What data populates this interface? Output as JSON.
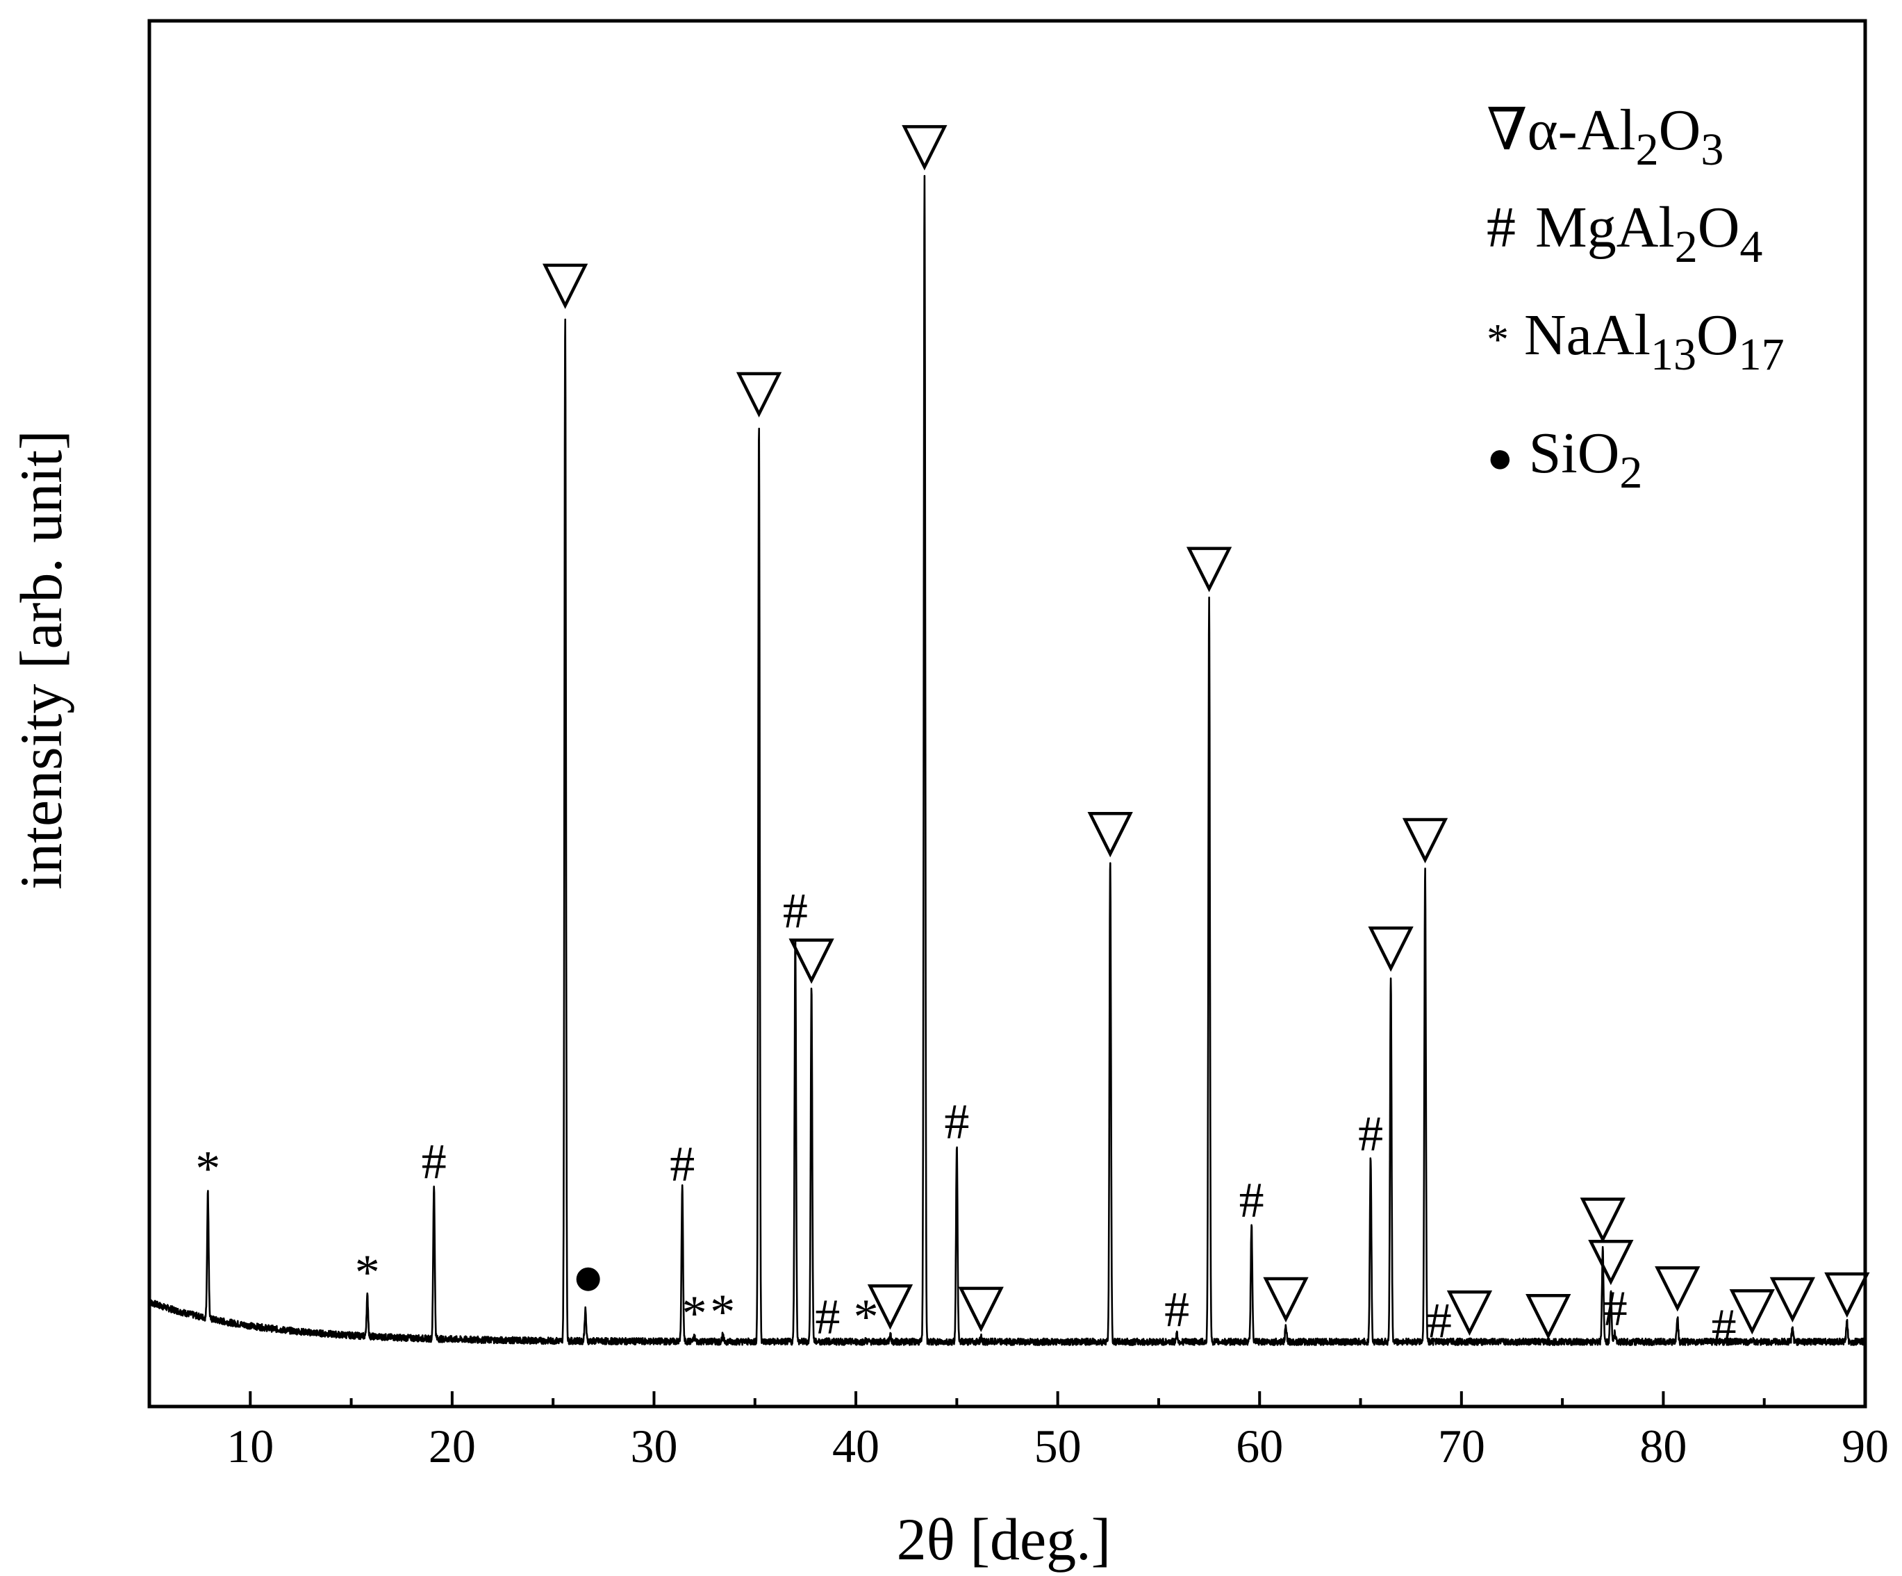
{
  "chart_data": {
    "type": "line",
    "title": "",
    "xlabel": "2θ [deg.]",
    "ylabel": "intensity [arb. unit]",
    "xlim": [
      5,
      90
    ],
    "ylim": [
      0,
      100
    ],
    "xticks": [
      10,
      20,
      30,
      40,
      50,
      60,
      70,
      80,
      90
    ],
    "grid": false,
    "legend_position": "top-right",
    "legend": [
      {
        "symbol": "∇",
        "formula": "α-Al2O3",
        "phase": "alpha-Al2O3"
      },
      {
        "symbol": "#",
        "formula": "MgAl2O4",
        "phase": "MgAl2O4"
      },
      {
        "symbol": "*",
        "formula": "NaAl13O17",
        "phase": "NaAl13O17"
      },
      {
        "symbol": "●",
        "formula": "SiO2",
        "phase": "SiO2"
      }
    ],
    "background": {
      "start": 5.5,
      "at5": 5.5,
      "at30": 2.4,
      "at90": 2.2
    },
    "peaks": [
      {
        "x": 7.9,
        "y": 14.6,
        "phase": "NaAl13O17",
        "marker": "*"
      },
      {
        "x": 15.8,
        "y": 6.0,
        "phase": "NaAl13O17",
        "marker": "*"
      },
      {
        "x": 19.1,
        "y": 15.2,
        "phase": "MgAl2O4",
        "marker": "#"
      },
      {
        "x": 25.6,
        "y": 87.5,
        "phase": "alpha-Al2O3",
        "marker": "∇"
      },
      {
        "x": 26.6,
        "y": 4.8,
        "phase": "SiO2",
        "marker": "●"
      },
      {
        "x": 31.4,
        "y": 15.0,
        "phase": "MgAl2O4",
        "marker": "#"
      },
      {
        "x": 32.0,
        "y": 2.6,
        "phase": "NaAl13O17",
        "marker": "*"
      },
      {
        "x": 33.4,
        "y": 2.7,
        "phase": "NaAl13O17",
        "marker": "*"
      },
      {
        "x": 35.2,
        "y": 78.5,
        "phase": "alpha-Al2O3",
        "marker": "∇"
      },
      {
        "x": 37.0,
        "y": 36.0,
        "phase": "MgAl2O4",
        "marker": "#"
      },
      {
        "x": 37.8,
        "y": 31.5,
        "phase": "alpha-Al2O3",
        "marker": "∇"
      },
      {
        "x": 38.6,
        "y": 2.3,
        "phase": "MgAl2O4",
        "marker": "#"
      },
      {
        "x": 40.5,
        "y": 2.3,
        "phase": "NaAl13O17",
        "marker": "*"
      },
      {
        "x": 41.7,
        "y": 2.8,
        "phase": "alpha-Al2O3",
        "marker": "∇"
      },
      {
        "x": 43.4,
        "y": 99.0,
        "phase": "alpha-Al2O3",
        "marker": "∇"
      },
      {
        "x": 45.0,
        "y": 18.5,
        "phase": "MgAl2O4",
        "marker": "#"
      },
      {
        "x": 46.2,
        "y": 2.6,
        "phase": "alpha-Al2O3",
        "marker": "∇"
      },
      {
        "x": 52.6,
        "y": 42.0,
        "phase": "alpha-Al2O3",
        "marker": "∇"
      },
      {
        "x": 55.9,
        "y": 2.9,
        "phase": "MgAl2O4",
        "marker": "#"
      },
      {
        "x": 57.5,
        "y": 64.0,
        "phase": "alpha-Al2O3",
        "marker": "∇"
      },
      {
        "x": 59.6,
        "y": 12.0,
        "phase": "MgAl2O4",
        "marker": "#"
      },
      {
        "x": 61.3,
        "y": 3.4,
        "phase": "alpha-Al2O3",
        "marker": "∇"
      },
      {
        "x": 65.5,
        "y": 17.5,
        "phase": "MgAl2O4",
        "marker": "#"
      },
      {
        "x": 66.5,
        "y": 32.5,
        "phase": "alpha-Al2O3",
        "marker": "∇"
      },
      {
        "x": 68.2,
        "y": 41.5,
        "phase": "alpha-Al2O3",
        "marker": "∇"
      },
      {
        "x": 68.9,
        "y": 2.0,
        "phase": "MgAl2O4",
        "marker": "#"
      },
      {
        "x": 70.4,
        "y": 2.3,
        "phase": "alpha-Al2O3",
        "marker": "∇"
      },
      {
        "x": 74.3,
        "y": 2.0,
        "phase": "alpha-Al2O3",
        "marker": "∇"
      },
      {
        "x": 77.0,
        "y": 10.0,
        "phase": "alpha-Al2O3",
        "marker": "∇"
      },
      {
        "x": 77.4,
        "y": 6.5,
        "phase": "alpha-Al2O3",
        "marker": "∇"
      },
      {
        "x": 77.6,
        "y": 3.0,
        "phase": "MgAl2O4",
        "marker": "#"
      },
      {
        "x": 80.7,
        "y": 4.3,
        "phase": "alpha-Al2O3",
        "marker": "∇"
      },
      {
        "x": 83.0,
        "y": 1.5,
        "phase": "MgAl2O4",
        "marker": "#"
      },
      {
        "x": 84.4,
        "y": 2.4,
        "phase": "alpha-Al2O3",
        "marker": "∇"
      },
      {
        "x": 86.4,
        "y": 3.4,
        "phase": "alpha-Al2O3",
        "marker": "∇"
      },
      {
        "x": 89.1,
        "y": 3.8,
        "phase": "alpha-Al2O3",
        "marker": "∇"
      }
    ]
  },
  "legend_text": {
    "alpha": {
      "symbol": "∇",
      "pre": "α-Al",
      "s1": "2",
      "mid": "O",
      "s2": "3"
    },
    "spinel": {
      "symbol": "#",
      "pre": "MgAl",
      "s1": "2",
      "mid": "O",
      "s2": "4"
    },
    "beta": {
      "symbol": "*",
      "pre": "NaAl",
      "s1": "13",
      "mid": "O",
      "s2": "17"
    },
    "silica": {
      "symbol": "●",
      "pre": "SiO",
      "s1": "2"
    }
  }
}
